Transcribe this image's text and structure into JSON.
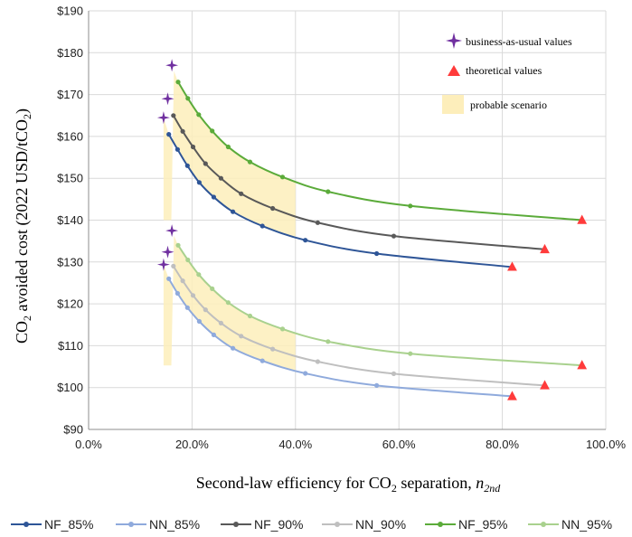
{
  "chart_data": {
    "type": "line",
    "xlabel_main": "Second-law efficiency for CO",
    "xlabel_sub": "2",
    "xlabel_tail": " separation, ",
    "xlabel_symbol": "n",
    "xlabel_symbol_sub": "2nd",
    "ylabel_main": "CO",
    "ylabel_sub": "2",
    "ylabel_mid": " avoided cost   (2022 USD/tCO",
    "ylabel_sub2": "2",
    "ylabel_tail": ")",
    "xlim": [
      0,
      100
    ],
    "ylim": [
      90,
      190
    ],
    "xticks": [
      0,
      20,
      40,
      60,
      80,
      100
    ],
    "yticks": [
      90,
      100,
      110,
      120,
      130,
      140,
      150,
      160,
      170,
      180,
      190
    ],
    "xtick_labels": [
      "0.0%",
      "20.0%",
      "40.0%",
      "60.0%",
      "80.0%",
      "100.0%"
    ],
    "ytick_labels": [
      "$90",
      "$100",
      "$110",
      "$120",
      "$130",
      "$140",
      "$150",
      "$160",
      "$170",
      "$180",
      "$190"
    ],
    "series": [
      {
        "name": "NF_85%",
        "color": "#2e5597",
        "x": [
          15.5,
          17.2,
          19.1,
          21.4,
          24.2,
          27.9,
          33.6,
          41.9,
          55.7,
          81.9
        ],
        "y": [
          160.5,
          156.9,
          153.0,
          149.0,
          145.5,
          142.0,
          138.6,
          135.2,
          132.0,
          128.8
        ],
        "bau": [
          14.5,
          164.5
        ],
        "theoretical": [
          81.9,
          128.8
        ]
      },
      {
        "name": "NN_85%",
        "color": "#8faadc",
        "x": [
          15.5,
          17.2,
          19.1,
          21.4,
          24.2,
          27.9,
          33.6,
          41.9,
          55.7,
          81.9
        ],
        "y": [
          126.0,
          122.5,
          119.1,
          115.8,
          112.6,
          109.4,
          106.4,
          103.4,
          100.5,
          97.9
        ],
        "bau": [
          14.5,
          129.4
        ],
        "theoretical": [
          81.9,
          97.9
        ]
      },
      {
        "name": "NF_90%",
        "color": "#595959",
        "x": [
          16.4,
          18.2,
          20.2,
          22.6,
          25.6,
          29.5,
          35.6,
          44.3,
          59.0,
          88.2
        ],
        "y": [
          165.0,
          161.2,
          157.5,
          153.5,
          150.0,
          146.3,
          142.8,
          139.4,
          136.2,
          133.0
        ],
        "bau": [
          15.3,
          169.0
        ],
        "theoretical": [
          88.2,
          133.0
        ]
      },
      {
        "name": "NN_90%",
        "color": "#bfbfbf",
        "x": [
          16.4,
          18.2,
          20.2,
          22.6,
          25.6,
          29.5,
          35.6,
          44.3,
          59.0,
          88.2
        ],
        "y": [
          129.0,
          125.5,
          122.0,
          118.6,
          115.4,
          112.3,
          109.2,
          106.2,
          103.3,
          100.5
        ],
        "bau": [
          15.3,
          132.4
        ],
        "theoretical": [
          88.2,
          100.5
        ]
      },
      {
        "name": "NF_95%",
        "color": "#5bab3a",
        "x": [
          17.3,
          19.2,
          21.3,
          23.9,
          27.0,
          31.2,
          37.5,
          46.3,
          62.2,
          95.4
        ],
        "y": [
          173.0,
          169.1,
          165.2,
          161.3,
          157.5,
          153.9,
          150.3,
          146.8,
          143.4,
          140.0
        ],
        "bau": [
          16.1,
          177.0
        ],
        "theoretical": [
          95.4,
          140.0
        ]
      },
      {
        "name": "NN_95%",
        "color": "#a9d18e",
        "x": [
          17.3,
          19.2,
          21.3,
          23.9,
          27.0,
          31.2,
          37.5,
          46.3,
          62.2,
          95.4
        ],
        "y": [
          134.0,
          130.5,
          127.0,
          123.6,
          120.3,
          117.1,
          114.0,
          111.0,
          108.1,
          105.3
        ],
        "bau": [
          16.1,
          137.5
        ],
        "theoretical": [
          95.4,
          105.3
        ]
      }
    ],
    "probable_scenario_x": [
      14.5,
      40
    ],
    "annotations": {
      "bau": "business-as-usual values",
      "theoretical": "theoretical values",
      "probable": "probable scenario"
    },
    "colors": {
      "bau": "#7030a0",
      "theoretical": "#ff3b3b",
      "shade": "#fdeebb"
    }
  }
}
